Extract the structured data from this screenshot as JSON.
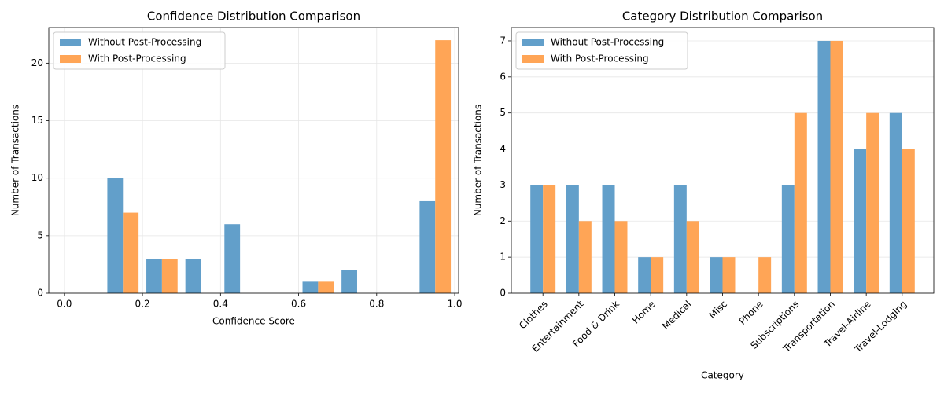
{
  "chart_data": [
    {
      "type": "histogram",
      "title": "Confidence Distribution Comparison",
      "x_label": "Confidence Score",
      "y_label": "Number of Transactions",
      "bins": [
        0,
        0.1,
        0.2,
        0.3,
        0.4,
        0.5,
        0.6,
        0.7,
        0.8,
        0.9,
        1.0
      ],
      "series": [
        {
          "name": "Without Post-Processing",
          "color": "#629fca",
          "values": [
            0,
            10,
            3,
            3,
            6,
            0,
            1,
            2,
            0,
            8
          ]
        },
        {
          "name": "With Post-Processing",
          "color": "#ffa556",
          "values": [
            0,
            7,
            3,
            0,
            0,
            0,
            1,
            0,
            0,
            22
          ]
        }
      ],
      "xlim": [
        -0.04,
        1.01
      ],
      "xticks": [
        {
          "value": 0,
          "label": "0.0"
        },
        0.2,
        0.4,
        0.6,
        0.8,
        {
          "value": 1,
          "label": "1.0"
        }
      ],
      "ylim": [
        0,
        23.1
      ],
      "yticks": [
        0,
        5,
        10,
        15,
        20
      ],
      "grid": true,
      "legend": "upper left"
    },
    {
      "type": "bar",
      "title": "Category Distribution Comparison",
      "x_label": "Category",
      "y_label": "Number of Transactions",
      "categories": [
        "Clothes",
        "Entertainment",
        "Food & Drink",
        "Home",
        "Medical",
        "Misc",
        "Phone",
        "Subscriptions",
        "Transportation",
        "Travel-Airline",
        "Travel-Lodging"
      ],
      "series": [
        {
          "name": "Without Post-Processing",
          "color": "#629fca",
          "values": [
            3,
            3,
            3,
            1,
            3,
            1,
            0,
            3,
            7,
            4,
            5
          ]
        },
        {
          "name": "With Post-Processing",
          "color": "#ffa556",
          "values": [
            3,
            2,
            2,
            1,
            2,
            1,
            1,
            5,
            7,
            5,
            4
          ]
        }
      ],
      "ylim": [
        0,
        7.37
      ],
      "yticks": [
        0,
        1,
        2,
        3,
        4,
        5,
        6,
        7
      ],
      "grid": true,
      "legend": "upper left"
    }
  ]
}
